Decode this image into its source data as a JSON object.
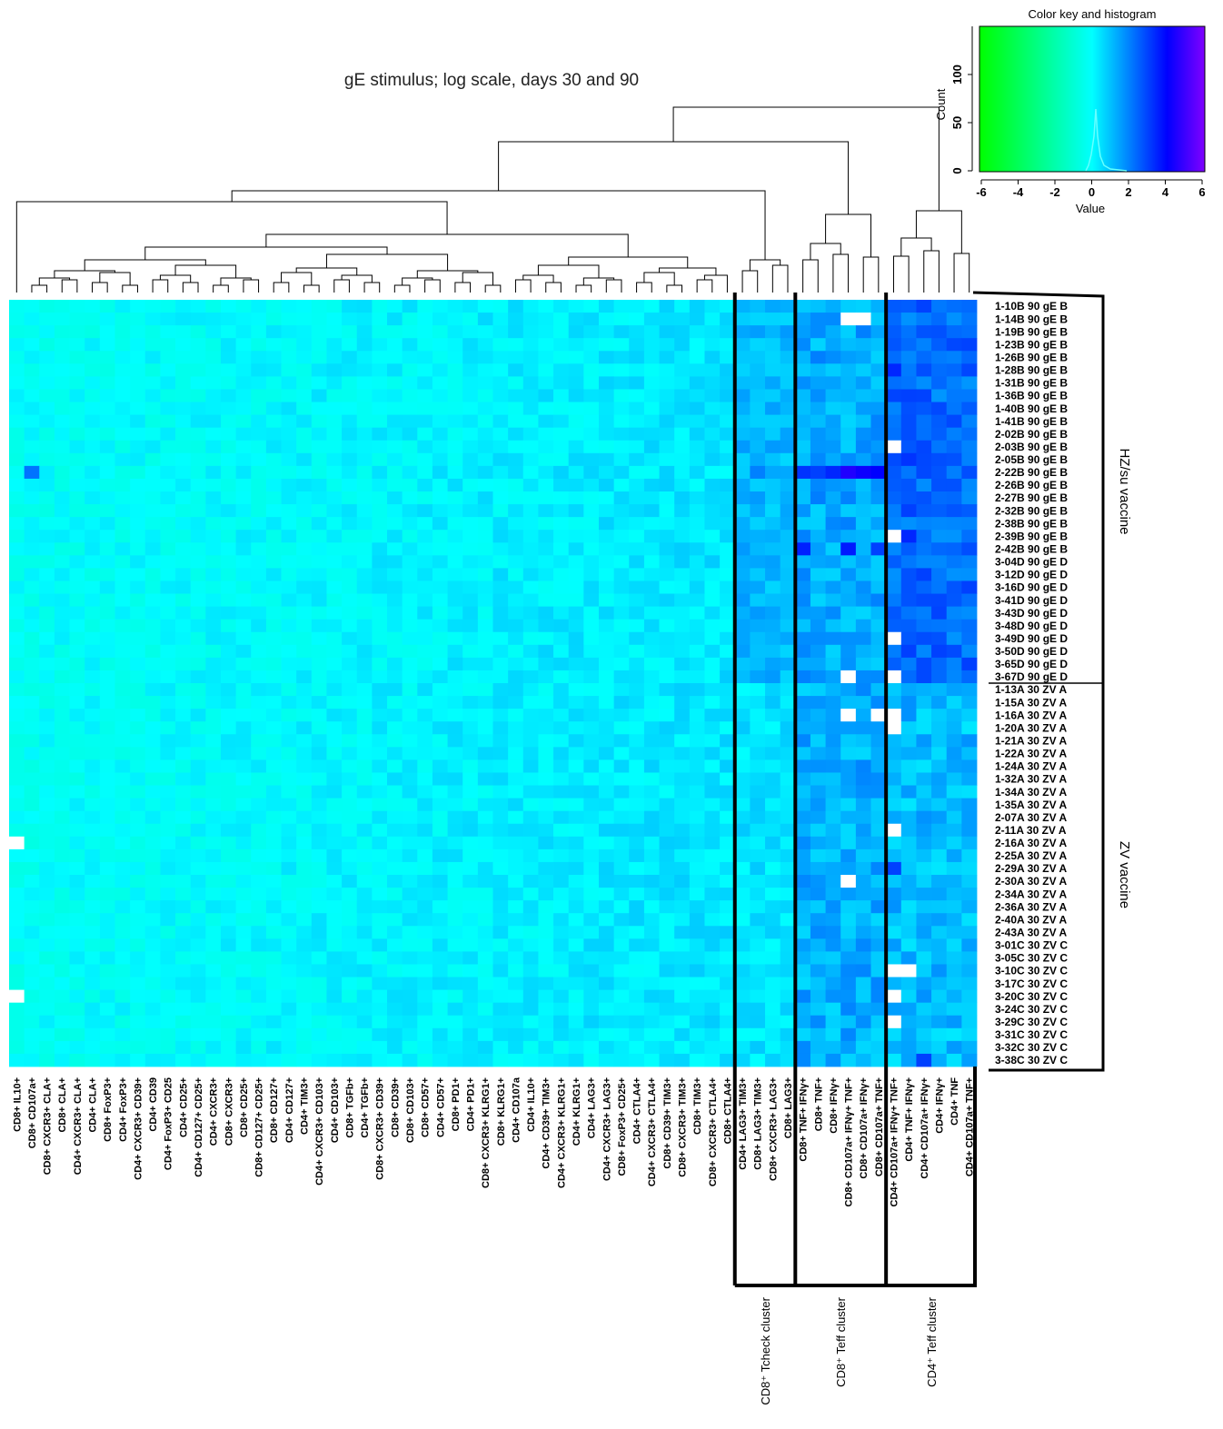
{
  "chart_data": {
    "type": "heatmap",
    "title": "gE stimulus; log scale, days 30 and 90",
    "columns": [
      "CD8+ IL10+",
      "CD8+ CD107a+",
      "CD8+ CXCR3+ CLA+",
      "CD8+ CLA+",
      "CD4+ CXCR3+ CLA+",
      "CD4+ CLA+",
      "CD8+ FoxP3+",
      "CD4+ FoxP3+",
      "CD4+ CXCR3+ CD39+",
      "CD4+ CD39",
      "CD4+ FoxP3+ CD25",
      "CD4+ CD25+",
      "CD4+ CD127+ CD25+",
      "CD4+ CXCR3+",
      "CD8+ CXCR3+",
      "CD8+ CD25+",
      "CD8+ CD127+ CD25+",
      "CD8+ CD127+",
      "CD4+ CD127+",
      "CD4+ TIM3+",
      "CD4+ CXCR3+ CD103+",
      "CD4+ CD103+",
      "CD8+ TGFb+",
      "CD4+ TGFb+",
      "CD8+ CXCR3+ CD39+",
      "CD8+ CD39+",
      "CD8+ CD103+",
      "CD8+ CD57+",
      "CD4+ CD57+",
      "CD8+ PD1+",
      "CD4+ PD1+",
      "CD8+ CXCR3+ KLRG1+",
      "CD8+ KLRG1+",
      "CD4+ CD107a",
      "CD4+ IL10+",
      "CD4+ CD39+ TIM3+",
      "CD4+ CXCR3+ KLRG1+",
      "CD4+ KLRG1+",
      "CD4+ LAG3+",
      "CD4+ CXCR3+ LAG3+",
      "CD8+ FoxP3+ CD25+",
      "CD4+ CTLA4+",
      "CD4+ CXCR3+ CTLA4+",
      "CD8+ CD39+ TIM3+",
      "CD8+ CXCR3+ TIM3+",
      "CD8+ TIM3+",
      "CD8+ CXCR3+ CTLA4+",
      "CD8+ CTLA4+",
      "CD4+ LAG3+ TIM3+",
      "CD8+ LAG3+ TIM3+",
      "CD8+ CXCR3+ LAG3+",
      "CD8+ LAG3+",
      "CD8+ TNF+ IFNγ+",
      "CD8+ TNF+",
      "CD8+ IFNγ+",
      "CD8+ CD107a+ IFNγ+ TNF+",
      "CD8+ CD107a+ IFNγ+",
      "CD8+ CD107a+ TNF+",
      "CD4+ CD107a+ IFNγ+ TNF+",
      "CD4+ TNF+ IFNγ+",
      "CD4+ CD107a+ IFNγ+",
      "CD4+ IFNγ+",
      "CD4+ TNF",
      "CD4+ CD107a+ TNF+"
    ],
    "rows": [
      "1-10B 90 gE B",
      "1-14B 90 gE B",
      "1-19B 90 gE B",
      "1-23B 90 gE B",
      "1-26B 90 gE B",
      "1-28B 90 gE B",
      "1-31B 90 gE B",
      "1-36B 90 gE B",
      "1-40B 90 gE B",
      "1-41B 90 gE B",
      "2-02B 90 gE B",
      "2-03B 90 gE B",
      "2-05B 90 gE B",
      "2-22B 90 gE B",
      "2-26B 90 gE B",
      "2-27B 90 gE B",
      "2-32B 90 gE B",
      "2-38B 90 gE B",
      "2-39B 90 gE B",
      "2-42B 90 gE B",
      "3-04D 90 gE D",
      "3-12D 90 gE D",
      "3-16D 90 gE D",
      "3-41D 90 gE D",
      "3-43D 90 gE D",
      "3-48D 90 gE D",
      "3-49D 90 gE D",
      "3-50D 90 gE D",
      "3-65D 90 gE D",
      "3-67D 90 gE D",
      "1-13A 30 ZV A",
      "1-15A 30 ZV A",
      "1-16A 30 ZV A",
      "1-20A 30 ZV A",
      "1-21A 30 ZV A",
      "1-22A 30 ZV A",
      "1-24A 30 ZV A",
      "1-32A 30 ZV A",
      "1-34A 30 ZV A",
      "1-35A 30 ZV A",
      "2-07A 30 ZV A",
      "2-11A 30 ZV A",
      "2-16A 30 ZV A",
      "2-25A 30 ZV A",
      "2-29A 30 ZV A",
      "2-30A 30 ZV A",
      "2-34A 30 ZV A",
      "2-36A 30 ZV A",
      "2-40A 30 ZV A",
      "2-43A 30 ZV A",
      "3-01C 30 ZV C",
      "3-05C 30 ZV C",
      "3-10C 30 ZV C",
      "3-17C 30 ZV C",
      "3-20C 30 ZV C",
      "3-24C 30 ZV C",
      "3-29C 30 ZV C",
      "3-31C 30 ZV C",
      "3-32C 30 ZV C",
      "3-38C 30 ZV C"
    ],
    "row_groups": [
      {
        "label": "HZ/su vaccine",
        "start": 0,
        "end": 29
      },
      {
        "label": "ZV vaccine",
        "start": 30,
        "end": 59
      }
    ],
    "column_clusters": [
      {
        "label": "CD8⁺ Tcheck cluster",
        "start": 48,
        "end": 51
      },
      {
        "label": "CD8⁺ Teff cluster",
        "start": 52,
        "end": 57
      },
      {
        "label": "CD4⁺ Teff cluster",
        "start": 58,
        "end": 63
      }
    ],
    "color_key": {
      "title": "Color key and histogram",
      "xlabel": "Value",
      "ylabel": "Count",
      "xticks": [
        -6,
        -4,
        -2,
        0,
        2,
        4,
        6
      ],
      "yticks": [
        0,
        50,
        100
      ],
      "xlim": [
        -6,
        6
      ],
      "ylim": [
        0,
        150
      ],
      "colors": [
        "#00ff00",
        "#00ffff",
        "#0000ff",
        "#8000ff"
      ]
    },
    "missing_cells": [
      [
        1,
        55
      ],
      [
        1,
        56
      ],
      [
        11,
        58
      ],
      [
        18,
        58
      ],
      [
        26,
        58
      ],
      [
        29,
        55
      ],
      [
        29,
        58
      ],
      [
        32,
        55
      ],
      [
        32,
        57
      ],
      [
        32,
        58
      ],
      [
        33,
        58
      ],
      [
        41,
        58
      ],
      [
        42,
        0
      ],
      [
        45,
        55
      ],
      [
        52,
        58
      ],
      [
        52,
        59
      ],
      [
        54,
        0
      ],
      [
        54,
        58
      ],
      [
        56,
        58
      ]
    ],
    "high_cells": [
      [
        13,
        1,
        2.2
      ],
      [
        13,
        49,
        2.0
      ],
      [
        13,
        52,
        3.2
      ],
      [
        13,
        53,
        3.0
      ],
      [
        13,
        54,
        3.4
      ],
      [
        13,
        55,
        4.5
      ],
      [
        13,
        56,
        4.2
      ],
      [
        13,
        57,
        4.0
      ],
      [
        19,
        52,
        3.5
      ],
      [
        19,
        55,
        3.6
      ],
      [
        19,
        57,
        3.0
      ],
      [
        5,
        58,
        3.4
      ],
      [
        12,
        59,
        3.2
      ],
      [
        18,
        59,
        3.4
      ],
      [
        44,
        58,
        3.0
      ],
      [
        59,
        60,
        3.0
      ],
      [
        7,
        59,
        3.0
      ],
      [
        9,
        59,
        2.8
      ]
    ],
    "dendrogram_branch_count": 63
  }
}
